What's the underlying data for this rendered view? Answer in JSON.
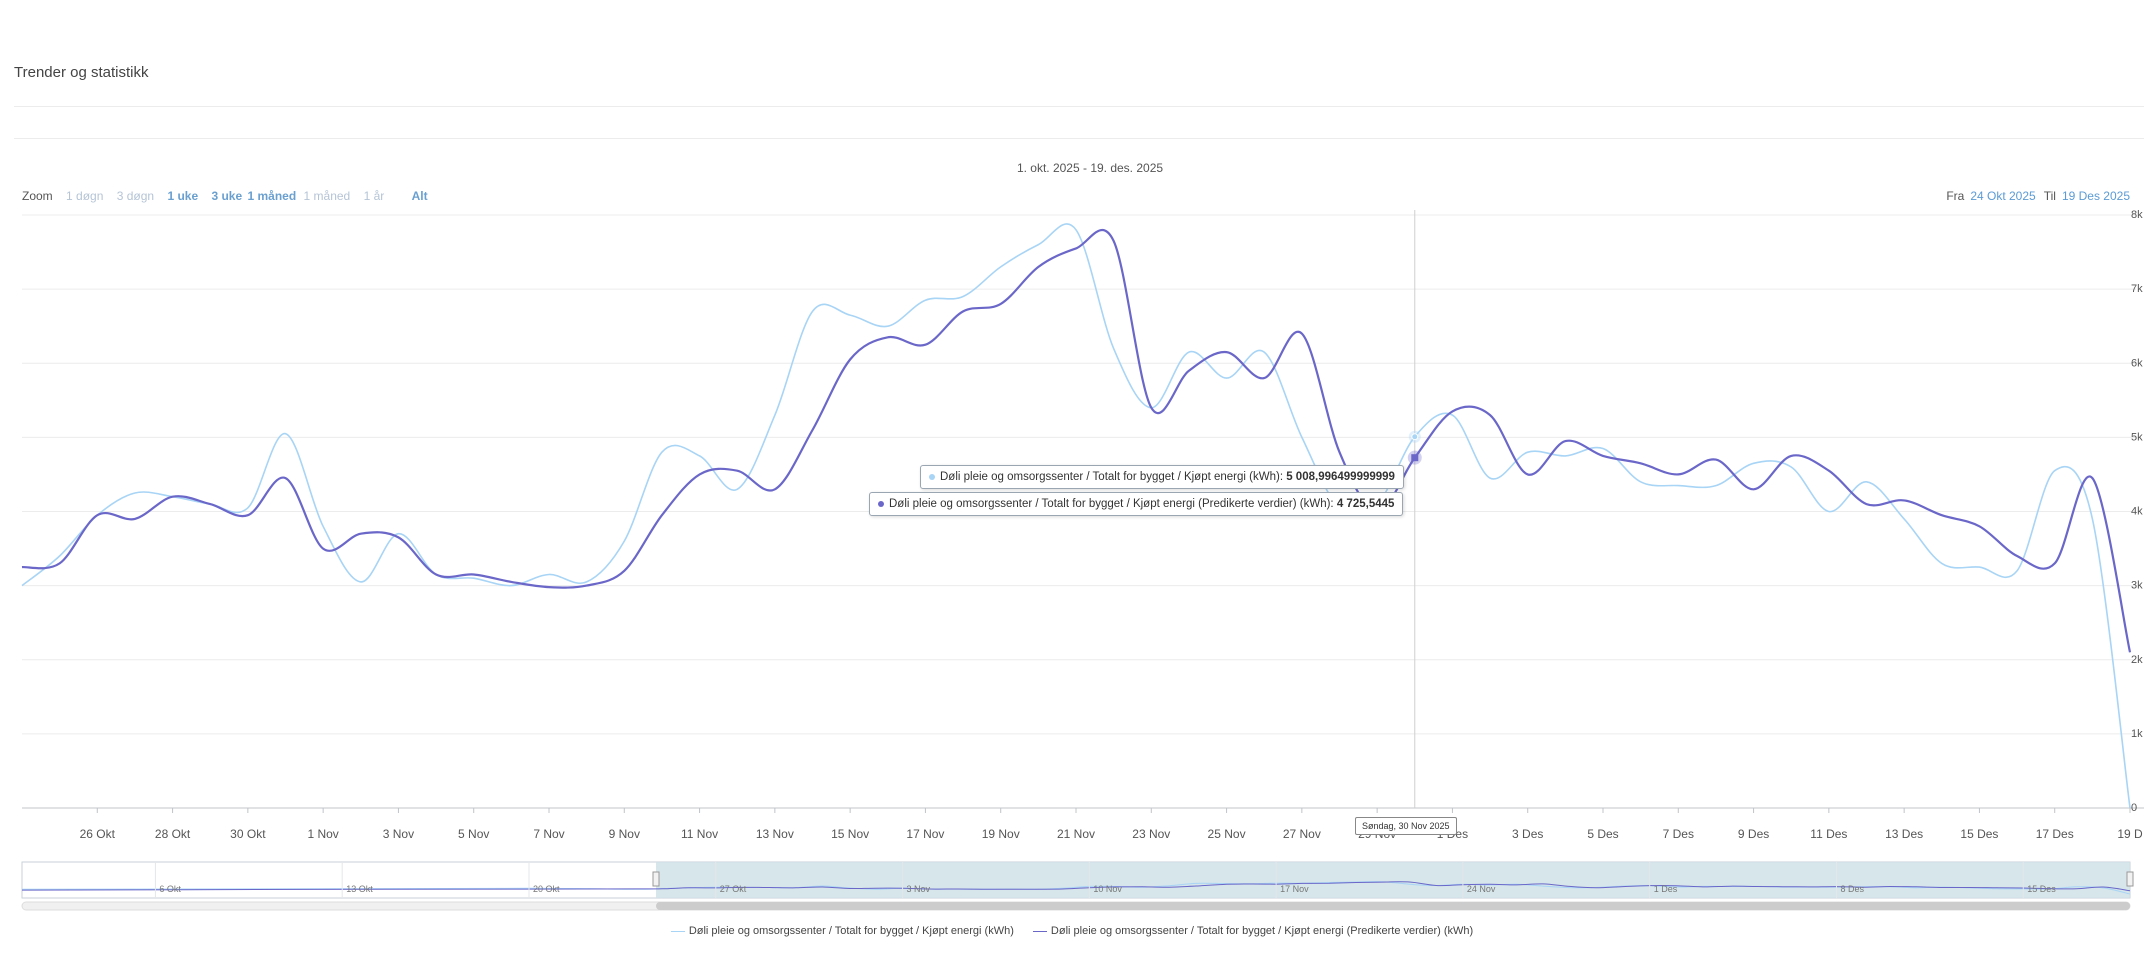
{
  "header": {
    "title": "Trender og statistikk"
  },
  "range_title": "1. okt. 2025 - 19. des. 2025",
  "zoom": {
    "label": "Zoom",
    "buttons": [
      "1 døgn",
      "3 døgn",
      "1 uke",
      "3 uke",
      "1 måned",
      "1 måned",
      "1 år",
      "Alt"
    ]
  },
  "date_range": {
    "from_label": "Fra",
    "from": "24 Okt 2025",
    "to_label": "Til",
    "to": "19 Des 2025"
  },
  "colors": {
    "actual": "#a8d4f5",
    "predicted": "#6a67c9",
    "grid": "#ececec"
  },
  "tooltip": {
    "actual": {
      "label": "Døli pleie og omsorgssenter / Totalt for bygget / Kjøpt energi (kWh):",
      "value": "5 008,996499999999"
    },
    "predicted": {
      "label": "Døli pleie og omsorgssenter / Totalt for bygget / Kjøpt energi (Predikerte verdier) (kWh):",
      "value": "4 725,5445"
    },
    "date": "Søndag, 30 Nov 2025"
  },
  "navigator": {
    "labels": [
      "6 Okt",
      "13 Okt",
      "20 Okt",
      "27 Okt",
      "3 Nov",
      "10 Nov",
      "17 Nov",
      "24 Nov",
      "1 Des",
      "8 Des",
      "15 Des"
    ]
  },
  "legend": [
    "Døli pleie og omsorgssenter / Totalt for bygget / Kjøpt energi (kWh)",
    "Døli pleie og omsorgssenter / Totalt for bygget / Kjøpt energi (Predikerte verdier) (kWh)"
  ],
  "chart_data": {
    "type": "line",
    "x_tick_labels": [
      "26 Okt",
      "28 Okt",
      "30 Okt",
      "1 Nov",
      "3 Nov",
      "5 Nov",
      "7 Nov",
      "9 Nov",
      "11 Nov",
      "13 Nov",
      "15 Nov",
      "17 Nov",
      "19 Nov",
      "21 Nov",
      "23 Nov",
      "25 Nov",
      "27 Nov",
      "29 Nov",
      "1 Des",
      "3 Des",
      "5 Des",
      "7 Des",
      "9 Des",
      "11 Des",
      "13 Des",
      "15 Des",
      "17 Des",
      "19 D"
    ],
    "y_tick_labels": [
      "0",
      "1k",
      "2k",
      "3k",
      "4k",
      "5k",
      "6k",
      "7k",
      "8k"
    ],
    "ylim": [
      0,
      8000
    ],
    "grid": true,
    "legend_position": "bottom-center",
    "x": [
      "2025-10-24",
      "2025-10-25",
      "2025-10-26",
      "2025-10-27",
      "2025-10-28",
      "2025-10-29",
      "2025-10-30",
      "2025-10-31",
      "2025-11-01",
      "2025-11-02",
      "2025-11-03",
      "2025-11-04",
      "2025-11-05",
      "2025-11-06",
      "2025-11-07",
      "2025-11-08",
      "2025-11-09",
      "2025-11-10",
      "2025-11-11",
      "2025-11-12",
      "2025-11-13",
      "2025-11-14",
      "2025-11-15",
      "2025-11-16",
      "2025-11-17",
      "2025-11-18",
      "2025-11-19",
      "2025-11-20",
      "2025-11-21",
      "2025-11-22",
      "2025-11-23",
      "2025-11-24",
      "2025-11-25",
      "2025-11-26",
      "2025-11-27",
      "2025-11-28",
      "2025-11-29",
      "2025-11-30",
      "2025-12-01",
      "2025-12-02",
      "2025-12-03",
      "2025-12-04",
      "2025-12-05",
      "2025-12-06",
      "2025-12-07",
      "2025-12-08",
      "2025-12-09",
      "2025-12-10",
      "2025-12-11",
      "2025-12-12",
      "2025-12-13",
      "2025-12-14",
      "2025-12-15",
      "2025-12-16",
      "2025-12-17",
      "2025-12-18",
      "2025-12-19"
    ],
    "series": [
      {
        "name": "Døli pleie og omsorgssenter / Totalt for bygget / Kjøpt energi (kWh)",
        "values": [
          3000,
          3400,
          3950,
          4250,
          4200,
          4100,
          4050,
          5050,
          3800,
          3050,
          3700,
          3150,
          3100,
          3000,
          3150,
          3050,
          3600,
          4800,
          4750,
          4300,
          5300,
          6700,
          6650,
          6500,
          6850,
          6900,
          7300,
          7600,
          7800,
          6200,
          5400,
          6150,
          5800,
          6150,
          5000,
          4050,
          4100,
          5009,
          5300,
          4450,
          4800,
          4750,
          4850,
          4400,
          4350,
          4350,
          4650,
          4600,
          4000,
          4400,
          3900,
          3300,
          3250,
          3200,
          4550,
          3900,
          0
        ]
      },
      {
        "name": "Døli pleie og omsorgssenter / Totalt for bygget / Kjøpt energi (Predikerte verdier) (kWh)",
        "values": [
          3250,
          3300,
          3950,
          3900,
          4200,
          4100,
          3950,
          4450,
          3500,
          3700,
          3650,
          3150,
          3150,
          3050,
          2980,
          3000,
          3200,
          3950,
          4500,
          4550,
          4300,
          5100,
          6050,
          6350,
          6250,
          6700,
          6800,
          7300,
          7550,
          7650,
          5400,
          5900,
          6150,
          5800,
          6400,
          4800,
          4000,
          4726,
          5350,
          5300,
          4500,
          4950,
          4750,
          4650,
          4500,
          4700,
          4300,
          4750,
          4550,
          4100,
          4150,
          3950,
          3800,
          3400,
          3300,
          4450,
          2100
        ]
      }
    ]
  }
}
